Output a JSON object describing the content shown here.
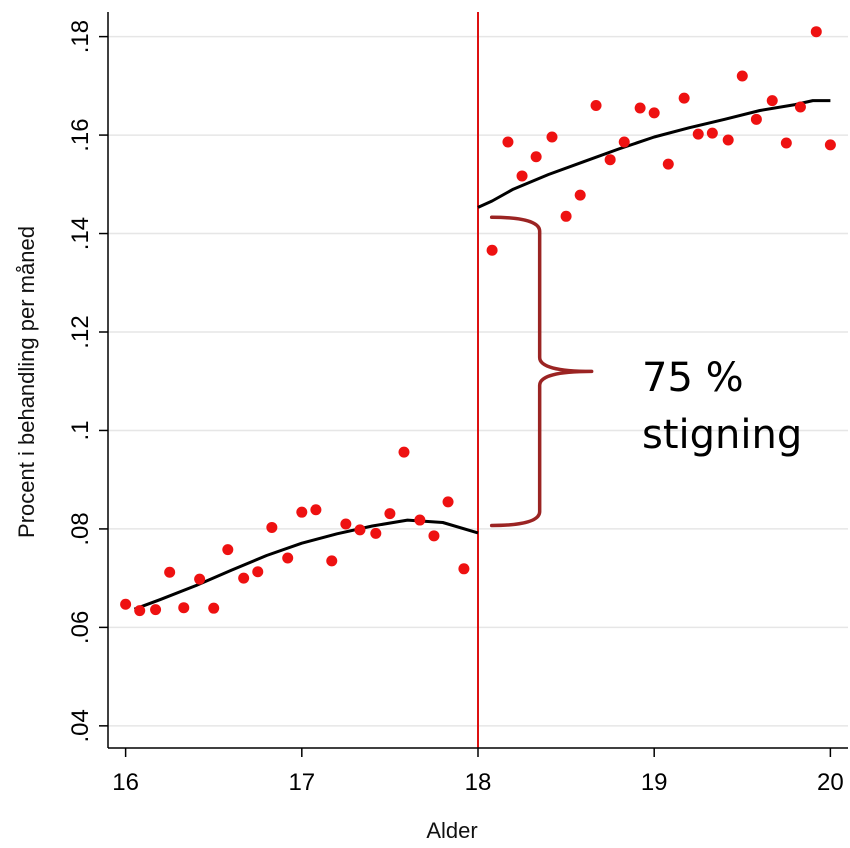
{
  "chart_data": {
    "type": "scatter",
    "xlabel": "Alder",
    "ylabel": "Procent i behandling per måned",
    "xlim": [
      15.9,
      20.1
    ],
    "ylim": [
      0.0355,
      0.185
    ],
    "x_ticks": [
      16,
      17,
      18,
      19,
      20
    ],
    "x_tick_labels": [
      "16",
      "17",
      "18",
      "19",
      "20"
    ],
    "y_ticks": [
      0.04,
      0.06,
      0.08,
      0.1,
      0.12,
      0.14,
      0.16,
      0.18
    ],
    "y_tick_labels": [
      ".04",
      ".06",
      ".08",
      ".1",
      ".12",
      ".14",
      ".16",
      ".18"
    ],
    "grid": true,
    "colors": {
      "points": "#ee1111",
      "fit": "#000000",
      "cutoff": "#dd1111",
      "brace": "#9b2423",
      "grid": "#e6e6e6"
    },
    "cutoff_x": 18,
    "points": [
      [
        16.0,
        0.0647
      ],
      [
        16.08,
        0.0634
      ],
      [
        16.17,
        0.0636
      ],
      [
        16.25,
        0.0712
      ],
      [
        16.33,
        0.064
      ],
      [
        16.42,
        0.0698
      ],
      [
        16.5,
        0.0639
      ],
      [
        16.58,
        0.0758
      ],
      [
        16.67,
        0.07
      ],
      [
        16.75,
        0.0713
      ],
      [
        16.83,
        0.0803
      ],
      [
        16.92,
        0.0741
      ],
      [
        17.0,
        0.0834
      ],
      [
        17.08,
        0.0839
      ],
      [
        17.17,
        0.0735
      ],
      [
        17.25,
        0.081
      ],
      [
        17.33,
        0.0798
      ],
      [
        17.42,
        0.0791
      ],
      [
        17.5,
        0.0831
      ],
      [
        17.58,
        0.0956
      ],
      [
        17.67,
        0.0818
      ],
      [
        17.75,
        0.0786
      ],
      [
        17.83,
        0.0855
      ],
      [
        17.92,
        0.0719
      ],
      [
        18.08,
        0.1366
      ],
      [
        18.17,
        0.1586
      ],
      [
        18.25,
        0.1517
      ],
      [
        18.33,
        0.1556
      ],
      [
        18.42,
        0.1596
      ],
      [
        18.5,
        0.1435
      ],
      [
        18.58,
        0.1478
      ],
      [
        18.67,
        0.166
      ],
      [
        18.75,
        0.155
      ],
      [
        18.83,
        0.1586
      ],
      [
        18.92,
        0.1655
      ],
      [
        19.0,
        0.1645
      ],
      [
        19.08,
        0.1541
      ],
      [
        19.17,
        0.1675
      ],
      [
        19.25,
        0.1602
      ],
      [
        19.33,
        0.1604
      ],
      [
        19.42,
        0.159
      ],
      [
        19.5,
        0.172
      ],
      [
        19.58,
        0.1632
      ],
      [
        19.67,
        0.167
      ],
      [
        19.75,
        0.1584
      ],
      [
        19.83,
        0.1657
      ],
      [
        19.92,
        0.181
      ],
      [
        20.0,
        0.158
      ]
    ],
    "fit_left": [
      [
        16.05,
        0.0637
      ],
      [
        16.2,
        0.0657
      ],
      [
        16.4,
        0.0685
      ],
      [
        16.6,
        0.0716
      ],
      [
        16.8,
        0.0746
      ],
      [
        17.0,
        0.0771
      ],
      [
        17.2,
        0.079
      ],
      [
        17.4,
        0.0806
      ],
      [
        17.6,
        0.0818
      ],
      [
        17.8,
        0.0813
      ],
      [
        18.0,
        0.0792
      ]
    ],
    "fit_right": [
      [
        18.0,
        0.1453
      ],
      [
        18.08,
        0.1466
      ],
      [
        18.2,
        0.149
      ],
      [
        18.4,
        0.152
      ],
      [
        18.6,
        0.1546
      ],
      [
        18.8,
        0.1572
      ],
      [
        19.0,
        0.1596
      ],
      [
        19.2,
        0.1615
      ],
      [
        19.4,
        0.1632
      ],
      [
        19.6,
        0.165
      ],
      [
        19.8,
        0.1662
      ],
      [
        19.9,
        0.167
      ],
      [
        20.0,
        0.167
      ]
    ],
    "annotations": [
      {
        "lines": [
          "75 %",
          "stigning"
        ]
      }
    ],
    "brace": {
      "x": 18.35,
      "y_top": 0.1433,
      "y_bottom": 0.0807
    }
  }
}
